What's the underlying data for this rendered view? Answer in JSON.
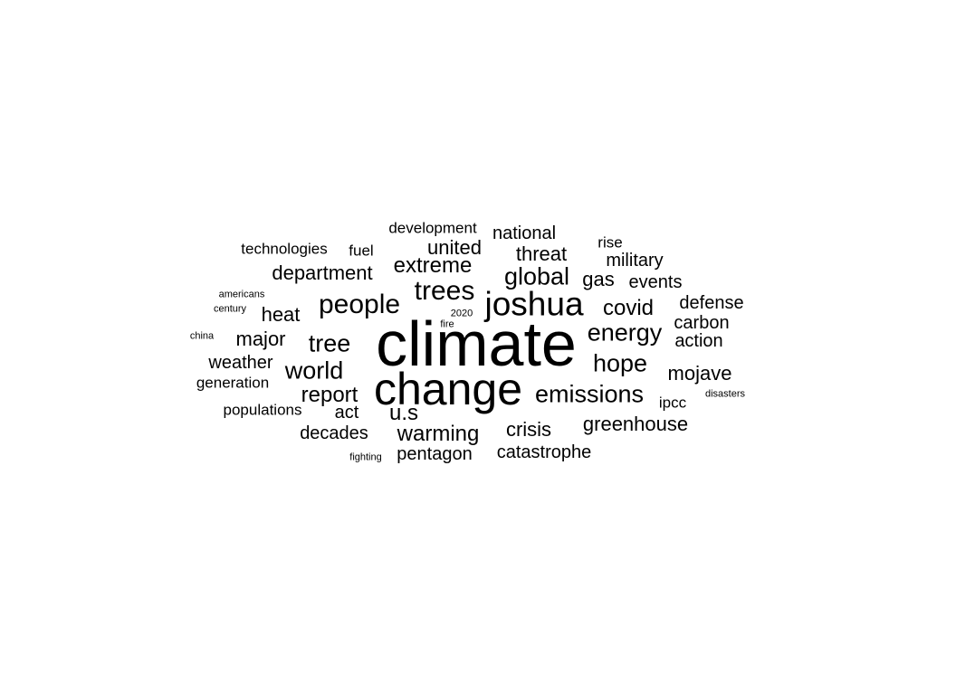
{
  "text_color": "#000000",
  "background_color": "#ffffff",
  "words": [
    {
      "text": "climate",
      "size": "largest"
    },
    {
      "text": "change",
      "size": "very large"
    },
    {
      "text": "joshua",
      "size": "large"
    },
    {
      "text": "trees",
      "size": "large"
    },
    {
      "text": "people",
      "size": "large"
    },
    {
      "text": "emissions",
      "size": "medium-large"
    },
    {
      "text": "global",
      "size": "medium-large"
    },
    {
      "text": "energy",
      "size": "medium-large"
    },
    {
      "text": "hope",
      "size": "medium-large"
    },
    {
      "text": "world",
      "size": "medium-large"
    },
    {
      "text": "tree",
      "size": "medium-large"
    },
    {
      "text": "warming",
      "size": "medium"
    },
    {
      "text": "extreme",
      "size": "medium"
    },
    {
      "text": "covid",
      "size": "medium"
    },
    {
      "text": "report",
      "size": "medium"
    },
    {
      "text": "u.s",
      "size": "medium"
    },
    {
      "text": "mojave",
      "size": "medium"
    },
    {
      "text": "greenhouse",
      "size": "medium"
    },
    {
      "text": "crisis",
      "size": "medium"
    },
    {
      "text": "threat",
      "size": "medium"
    },
    {
      "text": "united",
      "size": "medium"
    },
    {
      "text": "department",
      "size": "medium"
    },
    {
      "text": "major",
      "size": "medium"
    },
    {
      "text": "heat",
      "size": "medium"
    },
    {
      "text": "gas",
      "size": "medium"
    },
    {
      "text": "defense",
      "size": "small-medium"
    },
    {
      "text": "carbon",
      "size": "small-medium"
    },
    {
      "text": "action",
      "size": "small-medium"
    },
    {
      "text": "pentagon",
      "size": "small-medium"
    },
    {
      "text": "catastrophe",
      "size": "small-medium"
    },
    {
      "text": "decades",
      "size": "small-medium"
    },
    {
      "text": "national",
      "size": "small-medium"
    },
    {
      "text": "military",
      "size": "small-medium"
    },
    {
      "text": "events",
      "size": "small-medium"
    },
    {
      "text": "weather",
      "size": "small-medium"
    },
    {
      "text": "act",
      "size": "small-medium"
    },
    {
      "text": "development",
      "size": "small"
    },
    {
      "text": "technologies",
      "size": "small"
    },
    {
      "text": "fuel",
      "size": "small"
    },
    {
      "text": "generation",
      "size": "small"
    },
    {
      "text": "populations",
      "size": "small"
    },
    {
      "text": "ipcc",
      "size": "small"
    },
    {
      "text": "rise",
      "size": "small"
    },
    {
      "text": "americans",
      "size": "tiny"
    },
    {
      "text": "century",
      "size": "tiny"
    },
    {
      "text": "china",
      "size": "tiny"
    },
    {
      "text": "2020",
      "size": "tiny"
    },
    {
      "text": "fire",
      "size": "tiny"
    },
    {
      "text": "disasters",
      "size": "tiny"
    },
    {
      "text": "fighting",
      "size": "tiny"
    }
  ]
}
